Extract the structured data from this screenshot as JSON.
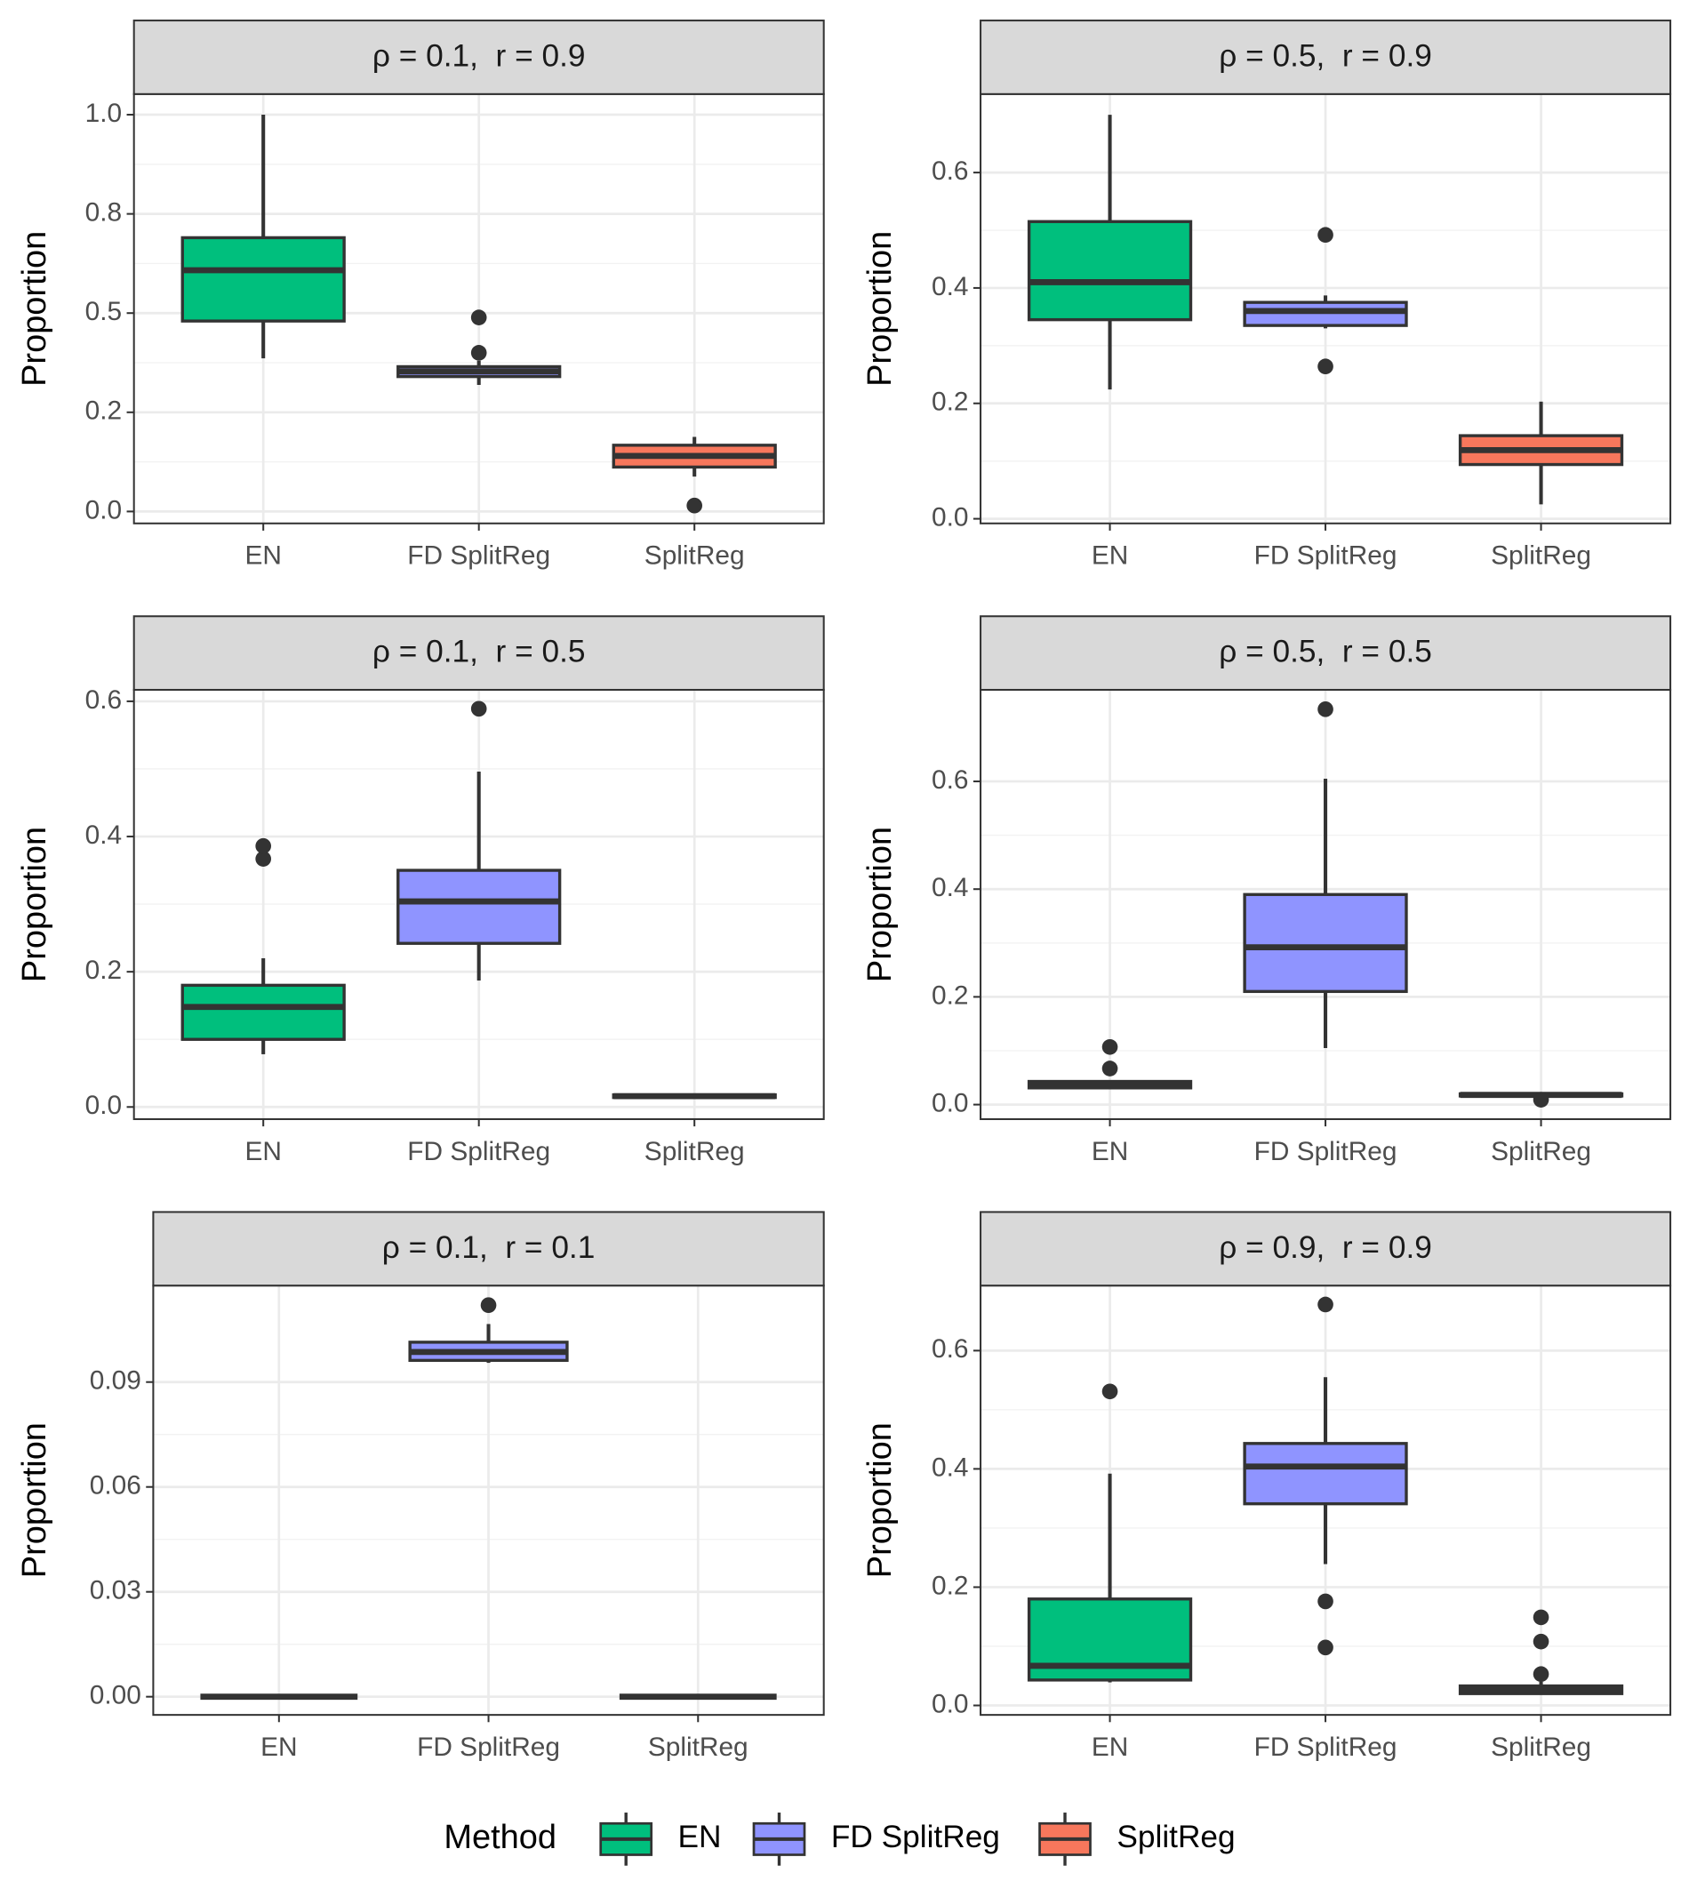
{
  "chart_data": [
    {
      "type": "box",
      "title": "ρ = 0.1,  r = 0.9",
      "y_label": "Proportion",
      "categories": [
        "EN",
        "FD SplitReg",
        "SplitReg"
      ],
      "colors": [
        "#00BF7D",
        "#8F94FF",
        "#F7775C"
      ],
      "boxes": [
        {
          "min": 0.386,
          "q1": 0.48,
          "median": 0.608,
          "q3": 0.69,
          "max": 1.0,
          "outliers": []
        },
        {
          "min": 0.319,
          "q1": 0.34,
          "median": 0.353,
          "q3": 0.365,
          "max": 0.38,
          "outliers": [
            0.4,
            0.489
          ]
        },
        {
          "min": 0.088,
          "q1": 0.112,
          "median": 0.14,
          "q3": 0.167,
          "max": 0.188,
          "outliers": [
            0.015
          ]
        }
      ],
      "ylim": [
        -0.03,
        1.052
      ],
      "yticks": [
        {
          "value": 0,
          "label": "0.0"
        },
        {
          "value": 0.25,
          "label": "0.2"
        },
        0.5,
        {
          "value": 0.75,
          "label": "0.8"
        },
        {
          "value": 1.0,
          "label": "1.0"
        }
      ],
      "grid": true
    },
    {
      "type": "box",
      "title": "ρ = 0.5,  r = 0.9",
      "y_label": "Proportion",
      "categories": [
        "EN",
        "FD SplitReg",
        "SplitReg"
      ],
      "colors": [
        "#00BF7D",
        "#8F94FF",
        "#F7775C"
      ],
      "boxes": [
        {
          "min": 0.224,
          "q1": 0.345,
          "median": 0.41,
          "q3": 0.515,
          "max": 0.7,
          "outliers": []
        },
        {
          "min": 0.33,
          "q1": 0.335,
          "median": 0.36,
          "q3": 0.375,
          "max": 0.387,
          "outliers": [
            0.492,
            0.264
          ]
        },
        {
          "min": 0.025,
          "q1": 0.094,
          "median": 0.119,
          "q3": 0.144,
          "max": 0.203,
          "outliers": []
        }
      ],
      "ylim": [
        -0.008,
        0.736
      ],
      "yticks": [
        {
          "value": 0,
          "label": "0.0"
        },
        0.2,
        0.4,
        0.6
      ],
      "grid": true
    },
    {
      "type": "box",
      "title": "ρ = 0.1,  r = 0.5",
      "y_label": "Proportion",
      "categories": [
        "EN",
        "FD SplitReg",
        "SplitReg"
      ],
      "colors": [
        "#00BF7D",
        "#8F94FF",
        "#F7775C"
      ],
      "boxes": [
        {
          "min": 0.078,
          "q1": 0.1,
          "median": 0.148,
          "q3": 0.18,
          "max": 0.22,
          "outliers": [
            0.367,
            0.386
          ]
        },
        {
          "min": 0.187,
          "q1": 0.242,
          "median": 0.304,
          "q3": 0.35,
          "max": 0.496,
          "outliers": [
            0.589
          ]
        },
        {
          "min": 0.013,
          "q1": 0.014,
          "median": 0.016,
          "q3": 0.018,
          "max": 0.019,
          "outliers": []
        }
      ],
      "ylim": [
        -0.018,
        0.617
      ],
      "yticks": [
        {
          "value": 0,
          "label": "0.0"
        },
        0.2,
        0.4,
        0.6
      ],
      "grid": true
    },
    {
      "type": "box",
      "title": "ρ = 0.5,  r = 0.5",
      "y_label": "Proportion",
      "categories": [
        "EN",
        "FD SplitReg",
        "SplitReg"
      ],
      "colors": [
        "#00BF7D",
        "#8F94FF",
        "#F7775C"
      ],
      "boxes": [
        {
          "min": 0.03,
          "q1": 0.031,
          "median": 0.038,
          "q3": 0.043,
          "max": 0.045,
          "outliers": [
            0.067,
            0.107
          ]
        },
        {
          "min": 0.105,
          "q1": 0.21,
          "median": 0.292,
          "q3": 0.39,
          "max": 0.605,
          "outliers": [
            0.734
          ]
        },
        {
          "min": 0.015,
          "q1": 0.016,
          "median": 0.018,
          "q3": 0.02,
          "max": 0.021,
          "outliers": [
            0.009
          ]
        }
      ],
      "ylim": [
        -0.027,
        0.77
      ],
      "yticks": [
        {
          "value": 0,
          "label": "0.0"
        },
        0.2,
        0.4,
        0.6
      ],
      "grid": true
    },
    {
      "type": "box",
      "title": "ρ = 0.1,  r = 0.1",
      "y_label": "Proportion",
      "categories": [
        "EN",
        "FD SplitReg",
        "SplitReg"
      ],
      "colors": [
        "#00BF7D",
        "#8F94FF",
        "#F7775C"
      ],
      "boxes": [
        {
          "min": 0,
          "q1": 0,
          "median": 0,
          "q3": 0,
          "max": 0,
          "outliers": []
        },
        {
          "min": 0.0955,
          "q1": 0.0962,
          "median": 0.0986,
          "q3": 0.1014,
          "max": 0.1066,
          "outliers": [
            0.112
          ]
        },
        {
          "min": 0,
          "q1": 0,
          "median": 0,
          "q3": 0,
          "max": 0,
          "outliers": []
        }
      ],
      "ylim": [
        -0.0052,
        0.1176
      ],
      "yticks": [
        {
          "value": 0,
          "label": "0.00"
        },
        {
          "value": 0.03,
          "label": "0.03"
        },
        {
          "value": 0.06,
          "label": "0.06"
        },
        {
          "value": 0.09,
          "label": "0.09"
        }
      ],
      "grid": true
    },
    {
      "type": "box",
      "title": "ρ = 0.9,  r = 0.9",
      "y_label": "Proportion",
      "categories": [
        "EN",
        "FD SplitReg",
        "SplitReg"
      ],
      "colors": [
        "#00BF7D",
        "#8F94FF",
        "#F7775C"
      ],
      "boxes": [
        {
          "min": 0.039,
          "q1": 0.043,
          "median": 0.067,
          "q3": 0.18,
          "max": 0.392,
          "outliers": [
            0.531
          ]
        },
        {
          "min": 0.239,
          "q1": 0.341,
          "median": 0.404,
          "q3": 0.443,
          "max": 0.555,
          "outliers": [
            0.678,
            0.176,
            0.098
          ]
        },
        {
          "min": 0.018,
          "q1": 0.02,
          "median": 0.026,
          "q3": 0.033,
          "max": 0.04,
          "outliers": [
            0.053,
            0.108,
            0.149
          ]
        }
      ],
      "ylim": [
        -0.016,
        0.71
      ],
      "yticks": [
        {
          "value": 0,
          "label": "0.0"
        },
        0.2,
        0.4,
        0.6
      ],
      "grid": true
    }
  ],
  "legend": {
    "title": "Method",
    "items": [
      {
        "name": "EN",
        "color": "#00BF7D"
      },
      {
        "name": "FD SplitReg",
        "color": "#8F94FF"
      },
      {
        "name": "SplitReg",
        "color": "#F7775C"
      }
    ]
  }
}
